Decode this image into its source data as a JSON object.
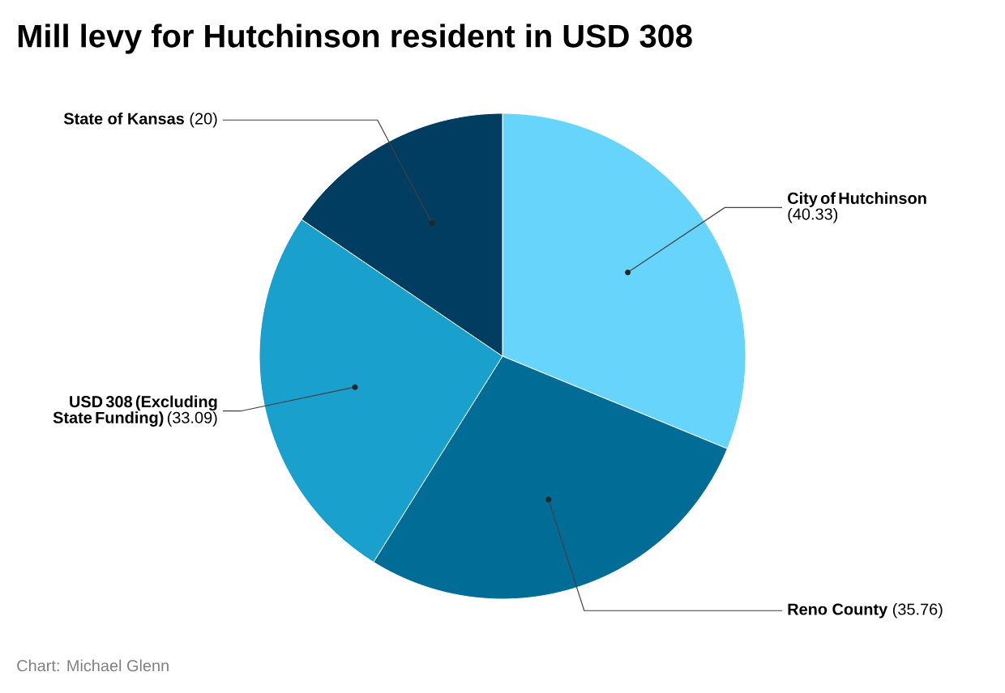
{
  "chart_data": {
    "type": "pie",
    "title": "Mill levy for Hutchinson resident in USD 308",
    "categories": [
      "City of Hutchinson",
      "Reno County",
      "USD 308 (Excluding State Funding)",
      "State of Kansas"
    ],
    "values": [
      40.33,
      35.76,
      33.09,
      20
    ],
    "colors": [
      "#67d5fb",
      "#016d96",
      "#19a0cd",
      "#003d60"
    ],
    "value_labels": [
      "(40.33)",
      "(35.76)",
      "(33.09)",
      "(20)"
    ],
    "annotations": [
      "Chart: Michael Glenn"
    ]
  }
}
